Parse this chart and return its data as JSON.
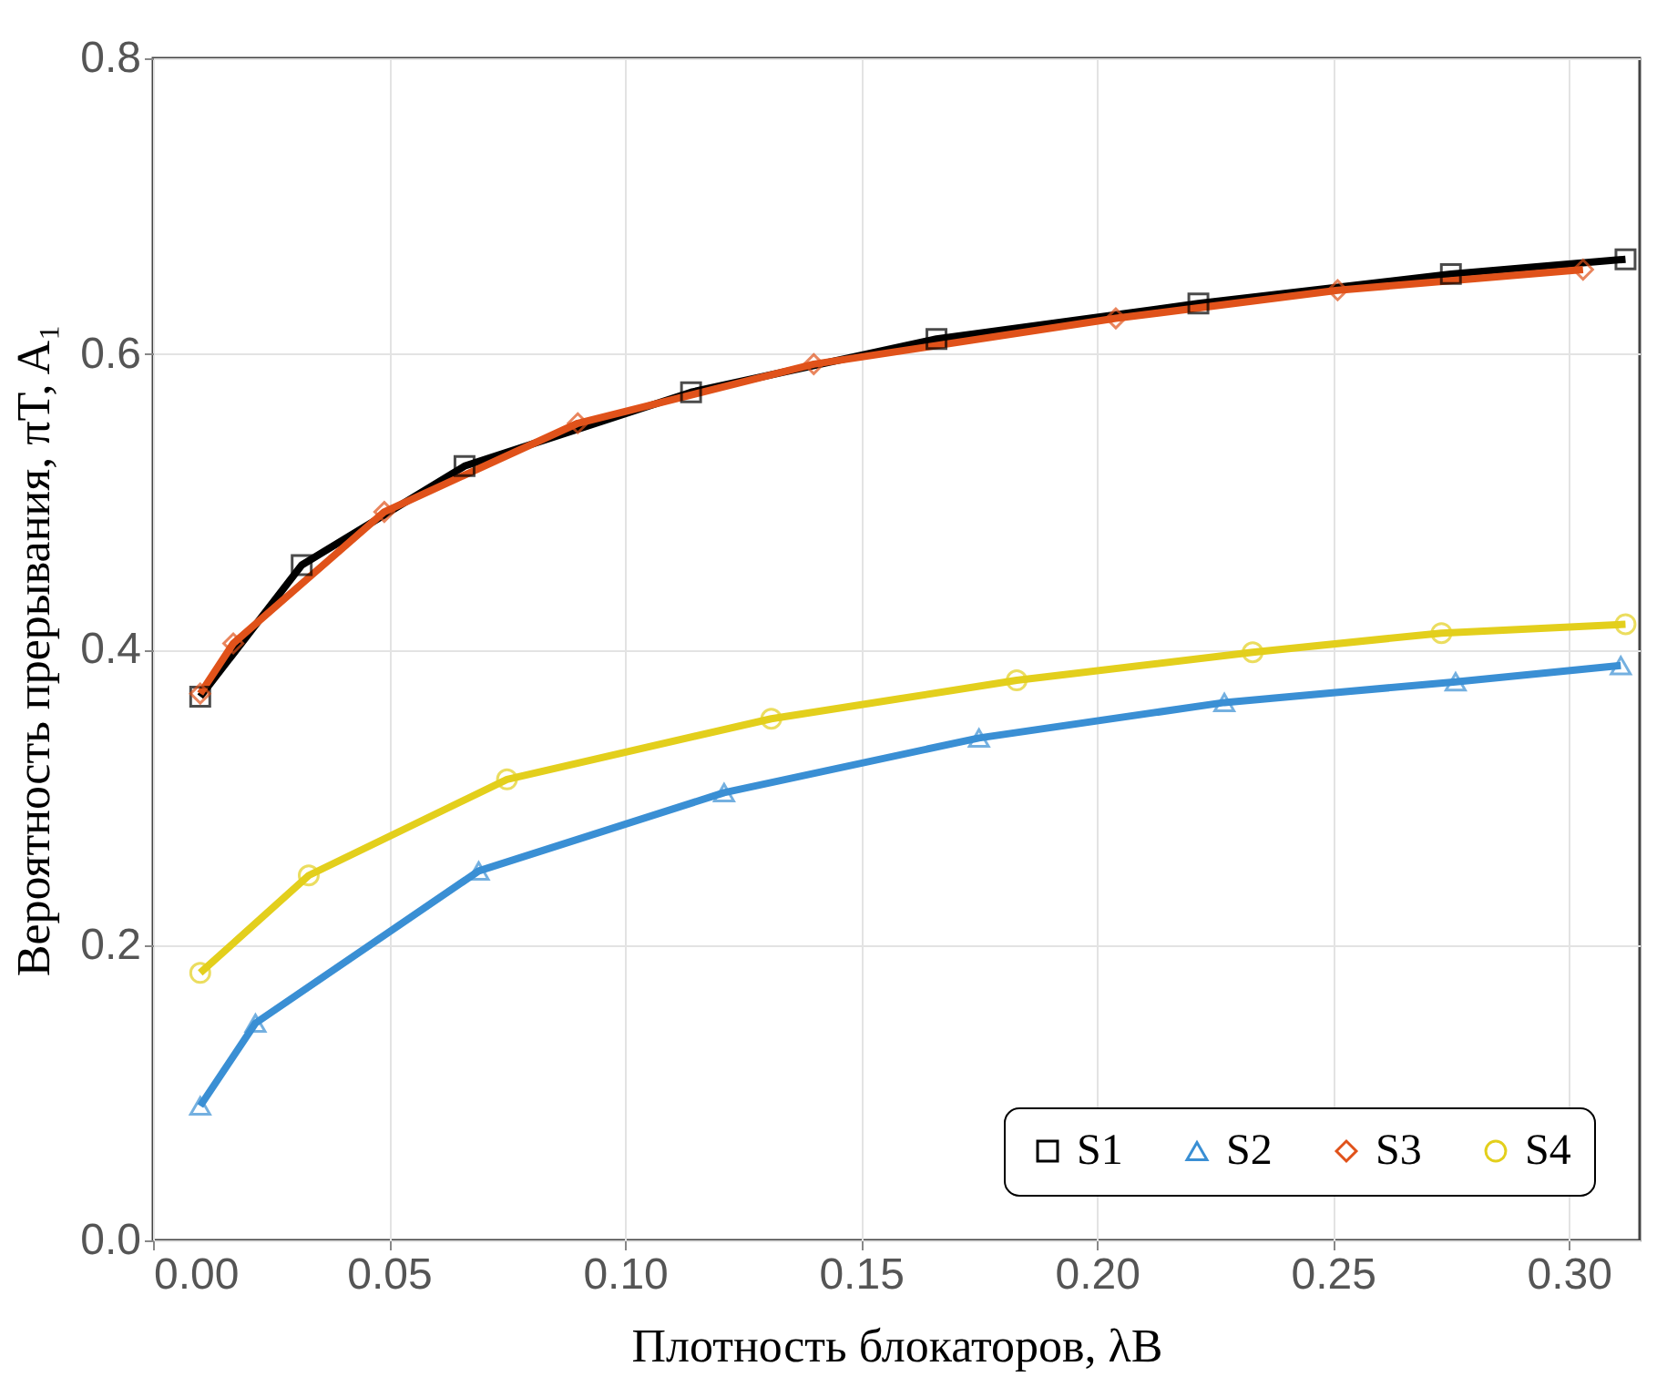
{
  "chart_data": {
    "type": "line",
    "xlabel": "Плотность блокаторов, λB",
    "ylabel": "Вероятность прерывания, πT, A₁",
    "xlim": [
      0,
      0.315
    ],
    "ylim": [
      0,
      0.8
    ],
    "xticks": [
      {
        "value": 0,
        "label": "0.00"
      },
      0.05,
      {
        "value": 0.1,
        "label": "0.10"
      },
      0.15,
      {
        "value": 0.2,
        "label": "0.20"
      },
      0.25,
      {
        "value": 0.3,
        "label": "0.30"
      }
    ],
    "yticks": [
      {
        "value": 0,
        "label": "0.0"
      },
      0.2,
      0.4,
      0.6,
      0.8
    ],
    "grid": true,
    "legend": "bottom right",
    "line_style": "solid",
    "series": [
      {
        "name": "S1",
        "color": "#000000",
        "marker": "square",
        "x": [
          0.01,
          0.0315,
          0.066,
          0.114,
          0.166,
          0.2215,
          0.275,
          0.312
        ],
        "values": [
          0.368,
          0.457,
          0.524,
          0.574,
          0.61,
          0.634,
          0.654,
          0.664
        ]
      },
      {
        "name": "S2",
        "color": "#3a8fd4",
        "marker": "triangle",
        "x": [
          0.01,
          0.0217,
          0.069,
          0.121,
          0.175,
          0.227,
          0.276,
          0.311
        ],
        "values": [
          0.091,
          0.147,
          0.25,
          0.303,
          0.34,
          0.364,
          0.378,
          0.389
        ]
      },
      {
        "name": "S3",
        "color": "#e0521a",
        "marker": "diamond",
        "x": [
          0.01,
          0.017,
          0.049,
          0.09,
          0.14,
          0.204,
          0.251,
          0.303
        ],
        "values": [
          0.37,
          0.404,
          0.493,
          0.553,
          0.593,
          0.624,
          0.643,
          0.657
        ]
      },
      {
        "name": "S4",
        "color": "#e3cf1c",
        "marker": "circle",
        "x": [
          0.01,
          0.033,
          0.075,
          0.131,
          0.183,
          0.233,
          0.273,
          0.312
        ],
        "values": [
          0.181,
          0.247,
          0.312,
          0.353,
          0.379,
          0.398,
          0.411,
          0.417
        ]
      }
    ]
  }
}
